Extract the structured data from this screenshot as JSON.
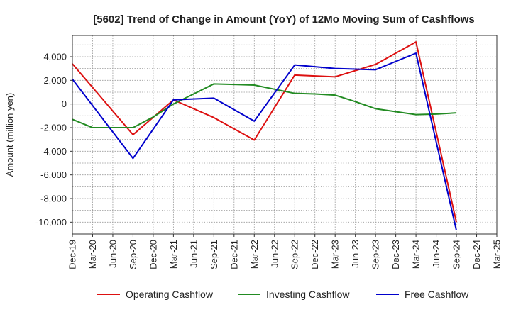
{
  "chart_data": {
    "type": "line",
    "title": "[5602]  Trend of Change in Amount (YoY) of 12Mo Moving Sum of Cashflows",
    "xlabel": "",
    "ylabel": "Amount (million yen)",
    "ylim": [
      -11000,
      5800
    ],
    "yticks": [
      -10000,
      -8000,
      -6000,
      -4000,
      -2000,
      0,
      2000,
      4000
    ],
    "ytick_labels": [
      "-10,000",
      "-8,000",
      "-6,000",
      "-4,000",
      "-2,000",
      "0",
      "2,000",
      "4,000"
    ],
    "categories": [
      "Dec-19",
      "Mar-20",
      "Jun-20",
      "Sep-20",
      "Dec-20",
      "Mar-21",
      "Jun-21",
      "Sep-21",
      "Dec-21",
      "Mar-22",
      "Jun-22",
      "Sep-22",
      "Dec-22",
      "Mar-23",
      "Jun-23",
      "Sep-23",
      "Dec-23",
      "Mar-24",
      "Jun-24",
      "Sep-24",
      "Dec-24",
      "Mar-25"
    ],
    "legend_position": "bottom",
    "grid": true,
    "series": [
      {
        "name": "Operating Cashflow",
        "color": "#dd1111",
        "values": [
          3400,
          null,
          null,
          -2600,
          null,
          350,
          null,
          -1150,
          null,
          -3050,
          null,
          2450,
          null,
          2300,
          null,
          3350,
          null,
          5250,
          null,
          -10000,
          null,
          null
        ]
      },
      {
        "name": "Investing Cashflow",
        "color": "#228b22",
        "values": [
          -1300,
          -2000,
          -2000,
          -2000,
          -1100,
          0,
          850,
          1700,
          1650,
          1600,
          1250,
          900,
          850,
          750,
          200,
          -400,
          -650,
          -900,
          -850,
          -750,
          null,
          null
        ]
      },
      {
        "name": "Free Cashflow",
        "color": "#0000cc",
        "values": [
          2100,
          null,
          null,
          -4600,
          null,
          350,
          null,
          500,
          null,
          -1450,
          null,
          3300,
          null,
          3000,
          null,
          2900,
          null,
          4300,
          null,
          -10700,
          null,
          null
        ]
      }
    ]
  }
}
